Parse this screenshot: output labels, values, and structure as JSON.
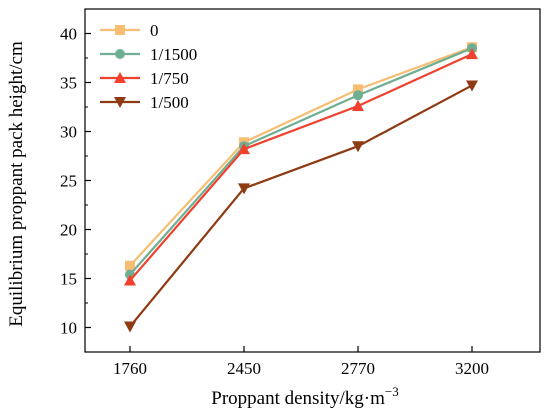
{
  "chart_data": {
    "type": "line",
    "categories": [
      "1760",
      "2450",
      "2770",
      "3200"
    ],
    "xlabel": "Proppant density/kg·m",
    "xlabel_sup": "−3",
    "ylabel": "Equilibrium proppant pack height/cm",
    "ylim": [
      7.5,
      42.5
    ],
    "yticks": [
      10,
      15,
      20,
      25,
      30,
      35,
      40
    ],
    "grid": false,
    "legend_position": "top-left",
    "series": [
      {
        "name": "0",
        "color": "#f7bd73",
        "marker": "square",
        "values": [
          16.3,
          28.9,
          34.3,
          38.6
        ]
      },
      {
        "name": "1/1500",
        "color": "#6fae92",
        "marker": "circle",
        "values": [
          15.4,
          28.5,
          33.7,
          38.5
        ]
      },
      {
        "name": "1/750",
        "color": "#f0412e",
        "marker": "triangle-up",
        "values": [
          14.8,
          28.2,
          32.6,
          37.9
        ]
      },
      {
        "name": "1/500",
        "color": "#8e3a12",
        "marker": "triangle-down",
        "values": [
          10.1,
          24.2,
          28.5,
          34.7
        ]
      }
    ]
  }
}
